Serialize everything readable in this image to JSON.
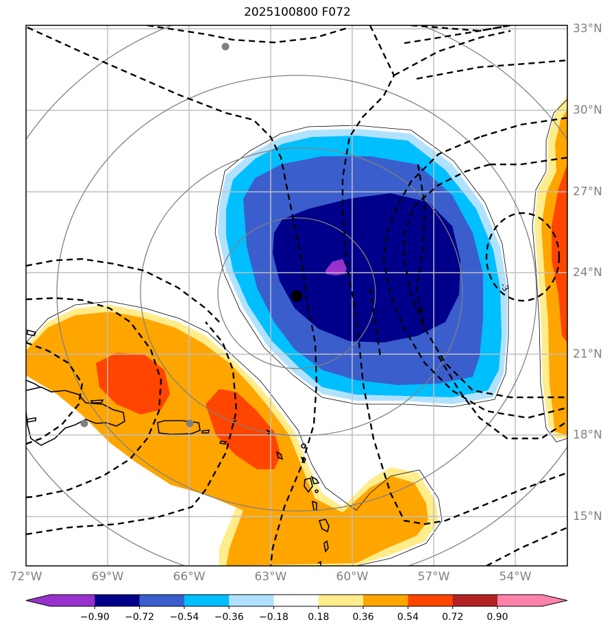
{
  "title": "2025100800 F072",
  "map": {
    "projection": "regional",
    "lon_range_deg": [
      -72,
      -52.5
    ],
    "lat_range_deg": [
      13.2,
      33.2
    ],
    "lon_ticks": [
      "72°W",
      "69°W",
      "66°W",
      "63°W",
      "60°W",
      "57°W",
      "54°W"
    ],
    "lat_ticks": [
      "33°N",
      "30°N",
      "27°N",
      "24°N",
      "21°N",
      "18°N",
      "15°N"
    ],
    "storm_center": {
      "lon": -62.0,
      "lat": 23.2
    },
    "reference_points": [
      {
        "lon": -64.7,
        "lat": 32.3
      },
      {
        "lon": -69.9,
        "lat": 18.5
      },
      {
        "lon": -66.0,
        "lat": 18.5
      }
    ]
  },
  "colorbar": {
    "levels": [
      "−0.90",
      "−0.72",
      "−0.54",
      "−0.36",
      "−0.18",
      "0.18",
      "0.36",
      "0.54",
      "0.72",
      "0.90"
    ],
    "colors": [
      "#9932cc",
      "#00008b",
      "#3a5fcd",
      "#00bfff",
      "#b0e2ff",
      "#ffffff",
      "#ffec8b",
      "#ffa500",
      "#ff4500",
      "#b22222",
      "#ff82ab"
    ],
    "extend": "both"
  },
  "style": {
    "grid_color": "#bfbfbf",
    "ring_color": "#808080",
    "contour_color": "#000000",
    "tick_label_color": "#808080"
  }
}
